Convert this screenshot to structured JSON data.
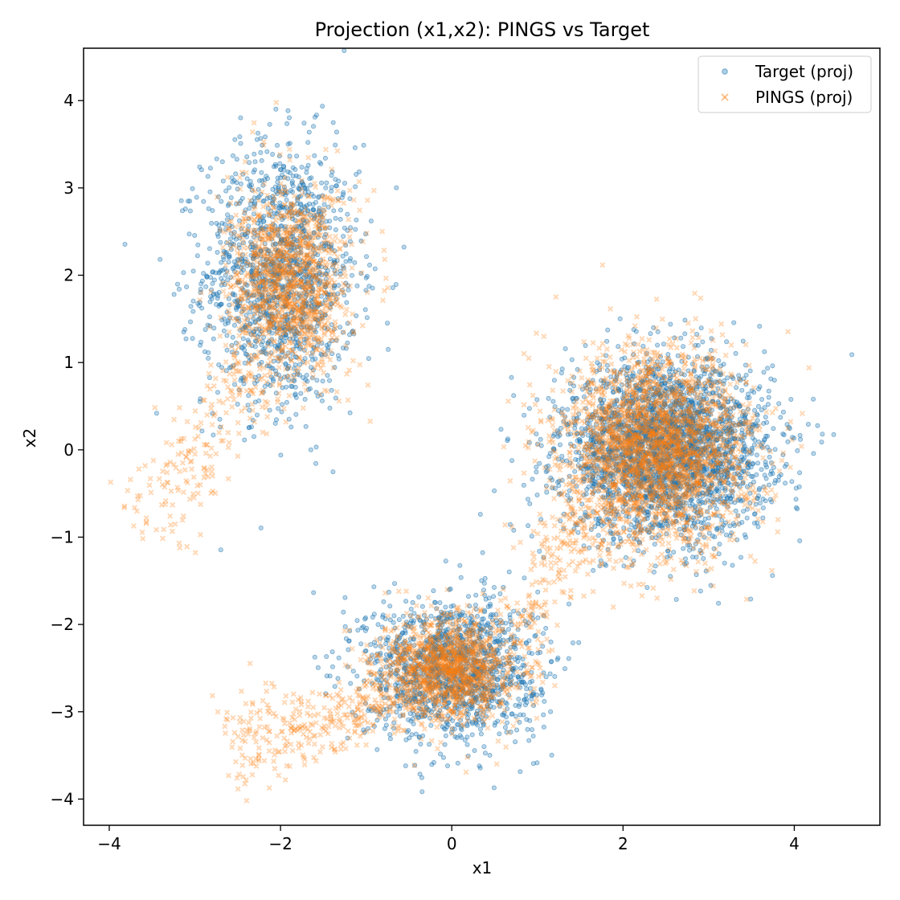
{
  "chart_data": {
    "type": "scatter",
    "title": "Projection (x1,x2): PINGS vs Target",
    "xlabel": "x1",
    "ylabel": "x2",
    "xlim": [
      -4.3,
      5.0
    ],
    "ylim": [
      -4.3,
      4.6
    ],
    "xticks": [
      -4,
      -2,
      0,
      2,
      4
    ],
    "yticks": [
      -4,
      -3,
      -2,
      -1,
      0,
      1,
      2,
      3,
      4
    ],
    "xtick_labels": [
      "−4",
      "−2",
      "0",
      "2",
      "4"
    ],
    "ytick_labels": [
      "−4",
      "−3",
      "−2",
      "−1",
      "0",
      "1",
      "2",
      "3",
      "4"
    ],
    "grid": false,
    "legend_position": "upper right",
    "series": [
      {
        "name": "Target (proj)",
        "marker": "circle",
        "color": "#1f77b4",
        "alpha": 0.3,
        "clusters": [
          {
            "center": [
              -2.0,
              2.0
            ],
            "spread": [
              0.45,
              0.75
            ],
            "count": 1400
          },
          {
            "center": [
              2.5,
              0.0
            ],
            "spread": [
              0.6,
              0.5
            ],
            "count": 2800
          },
          {
            "center": [
              0.0,
              -2.5
            ],
            "spread": [
              0.5,
              0.4
            ],
            "count": 1400
          }
        ]
      },
      {
        "name": "PINGS (proj)",
        "marker": "x",
        "color": "#ff7f0e",
        "alpha": 0.3,
        "clusters": [
          {
            "center": [
              -1.9,
              1.9
            ],
            "spread": [
              0.35,
              0.55
            ],
            "count": 1300
          },
          {
            "center": [
              2.4,
              0.0
            ],
            "spread": [
              0.55,
              0.55
            ],
            "count": 2600
          },
          {
            "center": [
              0.0,
              -2.5
            ],
            "spread": [
              0.4,
              0.3
            ],
            "count": 1300
          }
        ],
        "trails": [
          {
            "from": [
              -2.3,
              1.0
            ],
            "to": [
              -3.6,
              -0.9
            ],
            "count": 200,
            "width": 0.25
          },
          {
            "from": [
              -0.4,
              -2.8
            ],
            "to": [
              -2.6,
              -3.4
            ],
            "count": 350,
            "width": 0.22
          },
          {
            "from": [
              0.8,
              -2.0
            ],
            "to": [
              1.6,
              -0.7
            ],
            "count": 160,
            "width": 0.2
          }
        ]
      }
    ]
  }
}
